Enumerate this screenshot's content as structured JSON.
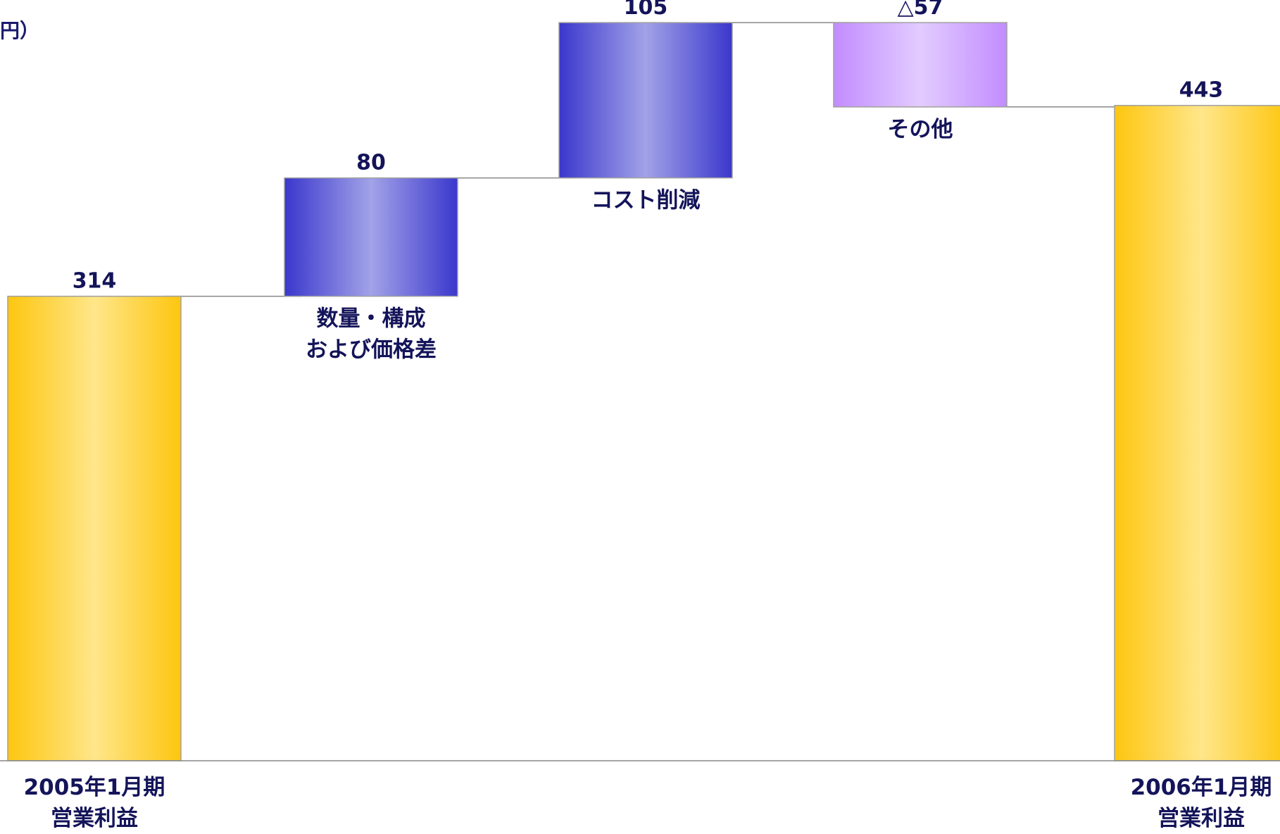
{
  "unit_label": "円）",
  "chart_data": {
    "type": "bar",
    "subtype": "waterfall",
    "categories": [
      [
        "2005年1月期",
        "営業利益"
      ],
      [
        "数量・構成",
        "および価格差"
      ],
      [
        "コスト削減"
      ],
      [
        "その他"
      ],
      [
        "2006年1月期",
        "営業利益"
      ]
    ],
    "values": [
      314,
      80,
      105,
      -57,
      443
    ],
    "value_labels": [
      "314",
      "80",
      "105",
      "△57",
      "443"
    ],
    "kinds": [
      "total",
      "increase",
      "increase",
      "decrease",
      "total"
    ],
    "ylim": [
      0,
      500
    ],
    "grid": false,
    "legend": "none",
    "colors": {
      "total_edge": "#FDC60F",
      "total_center": "#FFE68A",
      "increase_edge": "#3A37CC",
      "increase_center": "#A2A2E8",
      "decrease_edge": "#C28CFF",
      "decrease_center": "#E2CCFF",
      "connector": "#888888",
      "baseline": "#888888",
      "text": "#14145A"
    }
  }
}
